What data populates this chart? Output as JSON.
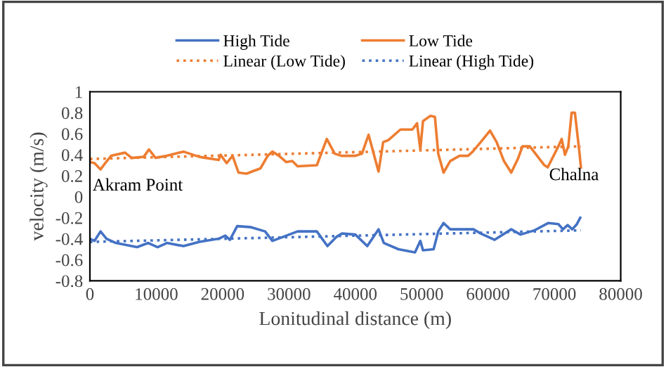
{
  "chart_data": {
    "type": "line",
    "xlabel": "Lonitudinal distance (m)",
    "ylabel": "velocity (m/s)",
    "xlim": [
      0,
      80000
    ],
    "ylim": [
      -0.8,
      1
    ],
    "xticks": [
      0,
      10000,
      20000,
      30000,
      40000,
      50000,
      60000,
      70000,
      80000
    ],
    "yticks": [
      -0.8,
      -0.6,
      -0.4,
      -0.2,
      0,
      0.2,
      0.4,
      0.6,
      0.8,
      1
    ],
    "grid": false,
    "legend": "top",
    "marker": "none",
    "annotations": [
      "Akram Point",
      "Chalna"
    ],
    "series": [
      {
        "name": "High Tide",
        "color": "#4472c4",
        "line_style": "solid",
        "x": [
          0,
          700,
          1600,
          2500,
          3900,
          7100,
          8800,
          10200,
          11600,
          14100,
          16500,
          19400,
          20400,
          21100,
          22200,
          24300,
          26400,
          27500,
          29200,
          31300,
          34200,
          35800,
          37200,
          38000,
          40000,
          41800,
          43500,
          44300,
          46500,
          49000,
          49800,
          50200,
          51800,
          52500,
          53300,
          54300,
          57800,
          58900,
          61000,
          63500,
          64900,
          67000,
          69100,
          70600,
          71300,
          72000,
          72700,
          73400,
          73900
        ],
        "values": [
          -0.4,
          -0.42,
          -0.33,
          -0.4,
          -0.44,
          -0.48,
          -0.44,
          -0.48,
          -0.44,
          -0.47,
          -0.43,
          -0.4,
          -0.37,
          -0.41,
          -0.28,
          -0.29,
          -0.33,
          -0.42,
          -0.38,
          -0.33,
          -0.33,
          -0.47,
          -0.38,
          -0.35,
          -0.36,
          -0.47,
          -0.31,
          -0.44,
          -0.5,
          -0.53,
          -0.42,
          -0.51,
          -0.5,
          -0.33,
          -0.25,
          -0.31,
          -0.31,
          -0.35,
          -0.41,
          -0.31,
          -0.36,
          -0.32,
          -0.25,
          -0.26,
          -0.31,
          -0.27,
          -0.31,
          -0.26,
          -0.2
        ]
      },
      {
        "name": "Low Tide",
        "color": "#ed7d31",
        "line_style": "solid",
        "x": [
          0,
          700,
          1600,
          2300,
          3200,
          5300,
          6300,
          8100,
          8900,
          9900,
          11600,
          14100,
          16500,
          19400,
          19700,
          20600,
          21500,
          22400,
          23600,
          25700,
          26800,
          27500,
          28500,
          29600,
          30500,
          31300,
          34200,
          35700,
          36900,
          37900,
          40000,
          41000,
          42000,
          43500,
          44200,
          45000,
          46800,
          48600,
          49300,
          49800,
          50200,
          51300,
          52000,
          52500,
          53300,
          54300,
          55700,
          57000,
          57700,
          58900,
          60300,
          61300,
          62400,
          63500,
          64500,
          65200,
          66300,
          67400,
          68500,
          69000,
          70600,
          71100,
          71600,
          72100,
          72600,
          73100,
          73800,
          74000
        ],
        "values": [
          0.33,
          0.32,
          0.26,
          0.32,
          0.39,
          0.42,
          0.37,
          0.38,
          0.45,
          0.37,
          0.39,
          0.43,
          0.38,
          0.35,
          0.4,
          0.32,
          0.39,
          0.23,
          0.22,
          0.27,
          0.39,
          0.43,
          0.39,
          0.33,
          0.34,
          0.29,
          0.3,
          0.55,
          0.41,
          0.39,
          0.39,
          0.41,
          0.59,
          0.24,
          0.52,
          0.54,
          0.64,
          0.64,
          0.7,
          0.45,
          0.72,
          0.77,
          0.76,
          0.41,
          0.23,
          0.34,
          0.39,
          0.39,
          0.43,
          0.52,
          0.63,
          0.52,
          0.34,
          0.23,
          0.36,
          0.48,
          0.48,
          0.39,
          0.3,
          0.28,
          0.48,
          0.55,
          0.4,
          0.48,
          0.8,
          0.8,
          0.41,
          0.28
        ]
      },
      {
        "name": "Linear (Low Tide)",
        "color": "#ed7d31",
        "line_style": "dotted",
        "x": [
          0,
          74000
        ],
        "values": [
          0.36,
          0.48
        ]
      },
      {
        "name": "Linear (High Tide)",
        "color": "#4472c4",
        "line_style": "dotted",
        "x": [
          0,
          74000
        ],
        "values": [
          -0.43,
          -0.32
        ]
      }
    ]
  }
}
